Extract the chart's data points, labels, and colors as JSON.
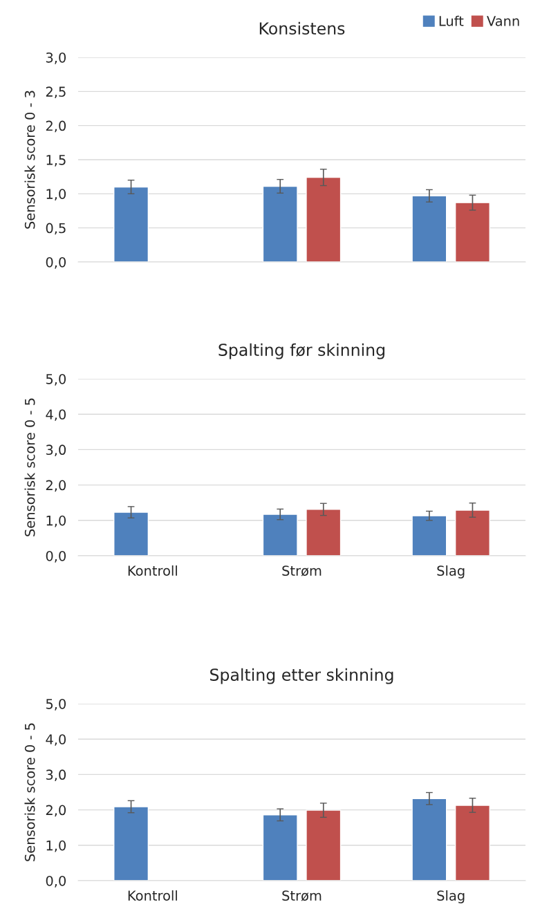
{
  "chart_data": [
    {
      "type": "bar",
      "title": "Konsistens",
      "ylabel": "Sensorisk score 0 - 3",
      "categories": [
        null,
        null,
        null
      ],
      "series": [
        {
          "name": "Luft",
          "color": "#4f81bd",
          "values": [
            1.1,
            1.11,
            0.97
          ],
          "errors": [
            0.1,
            0.1,
            0.09
          ]
        },
        {
          "name": "Vann",
          "color": "#c0504d",
          "values": [
            null,
            1.24,
            0.87
          ],
          "errors": [
            null,
            0.12,
            0.11
          ]
        }
      ],
      "ylim": [
        0,
        3
      ],
      "yticks": [
        {
          "value": 0,
          "label": "0,0"
        },
        {
          "value": 0.5,
          "label": "0,5"
        },
        {
          "value": 1,
          "label": "1,0"
        },
        {
          "value": 1.5,
          "label": "1,5"
        },
        {
          "value": 2,
          "label": "2,0"
        },
        {
          "value": 2.5,
          "label": "2,5"
        },
        {
          "value": 3,
          "label": "3,0"
        }
      ],
      "grid": "y",
      "legend": "top right"
    },
    {
      "type": "bar",
      "title": "Spalting før skinning",
      "ylabel": "Sensorisk score 0 - 5",
      "categories": [
        "Kontroll",
        "Strøm",
        "Slag"
      ],
      "series": [
        {
          "color": "#4f81bd",
          "values": [
            1.23,
            1.17,
            1.13
          ],
          "errors": [
            0.16,
            0.15,
            0.13
          ]
        },
        {
          "color": "#c0504d",
          "values": [
            null,
            1.31,
            1.29
          ],
          "errors": [
            null,
            0.17,
            0.2
          ]
        }
      ],
      "ylim": [
        0,
        5
      ],
      "yticks": [
        {
          "value": 0,
          "label": "0,0"
        },
        {
          "value": 1,
          "label": "1,0"
        },
        {
          "value": 2,
          "label": "2,0"
        },
        {
          "value": 3,
          "label": "3,0"
        },
        {
          "value": 4,
          "label": "4,0"
        },
        {
          "value": 5,
          "label": "5,0"
        }
      ],
      "grid": "y"
    },
    {
      "type": "bar",
      "title": "Spalting etter skinning",
      "ylabel": "Sensorisk score 0 - 5",
      "categories": [
        "Kontroll",
        "Strøm",
        "Slag"
      ],
      "series": [
        {
          "color": "#4f81bd",
          "values": [
            2.09,
            1.86,
            2.32
          ],
          "errors": [
            0.17,
            0.17,
            0.17
          ]
        },
        {
          "color": "#c0504d",
          "values": [
            null,
            1.99,
            2.13
          ],
          "errors": [
            null,
            0.2,
            0.2
          ]
        }
      ],
      "ylim": [
        0,
        5
      ],
      "yticks": [
        {
          "value": 0,
          "label": "0,0"
        },
        {
          "value": 1,
          "label": "1,0"
        },
        {
          "value": 2,
          "label": "2,0"
        },
        {
          "value": 3,
          "label": "3,0"
        },
        {
          "value": 4,
          "label": "4,0"
        },
        {
          "value": 5,
          "label": "5,0"
        }
      ],
      "grid": "y"
    }
  ]
}
